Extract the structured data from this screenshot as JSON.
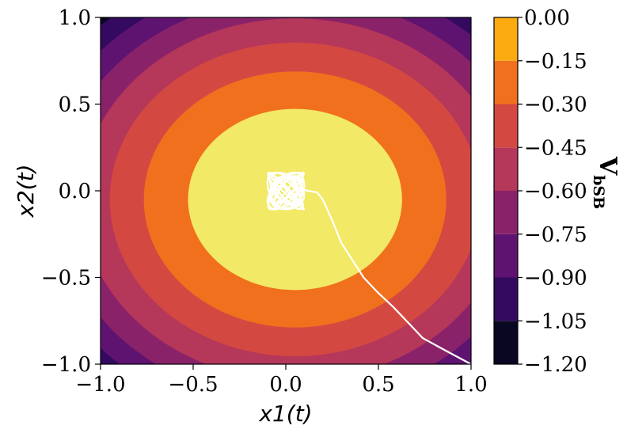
{
  "chart_data": {
    "type": "contour",
    "xlabel": "x1(t)",
    "ylabel": "x2(t)",
    "xlim": [
      -1.0,
      1.0
    ],
    "ylim": [
      -1.0,
      1.0
    ],
    "x_ticks": [
      "−1.0",
      "−0.5",
      "0.0",
      "0.5",
      "1.0"
    ],
    "y_ticks": [
      "−1.0",
      "−0.5",
      "0.0",
      "0.5",
      "1.0"
    ],
    "field": {
      "center": [
        0.05,
        -0.05
      ],
      "coef_x": 0.45,
      "coef_y": 0.55
    },
    "levels": [
      -1.2,
      -1.05,
      -0.9,
      -0.75,
      -0.6,
      -0.45,
      -0.3,
      -0.15,
      0.0
    ],
    "level_colors": [
      "#0a0722",
      "#330a5f",
      "#5e1370",
      "#8a226a",
      "#b53759",
      "#d44842",
      "#f0701e",
      "#fbab0f",
      "#f2e966"
    ],
    "colorbar": {
      "label": "V",
      "label_sub": "bSB",
      "tick_labels": [
        "0.00",
        "−0.15",
        "−0.30",
        "−0.45",
        "−0.60",
        "−0.75",
        "−0.90",
        "−1.05",
        "−1.20"
      ],
      "tick_values": [
        0.0,
        -0.15,
        -0.3,
        -0.45,
        -0.6,
        -0.75,
        -0.9,
        -1.05,
        -1.2
      ]
    },
    "trajectory": {
      "color": "#ffffff",
      "path": [
        [
          1.0,
          -1.0
        ],
        [
          0.86,
          -0.92
        ],
        [
          0.74,
          -0.85
        ],
        [
          0.66,
          -0.76
        ],
        [
          0.58,
          -0.67
        ],
        [
          0.5,
          -0.59
        ],
        [
          0.42,
          -0.5
        ],
        [
          0.36,
          -0.4
        ],
        [
          0.3,
          -0.3
        ],
        [
          0.25,
          -0.17
        ],
        [
          0.2,
          -0.05
        ],
        [
          0.17,
          -0.01
        ],
        [
          0.12,
          0.0
        ],
        [
          0.08,
          0.01
        ]
      ],
      "oscillation": {
        "center": [
          0.0,
          0.0
        ],
        "radius_x": 0.1,
        "radius_y": 0.11,
        "loops": 14
      }
    }
  }
}
